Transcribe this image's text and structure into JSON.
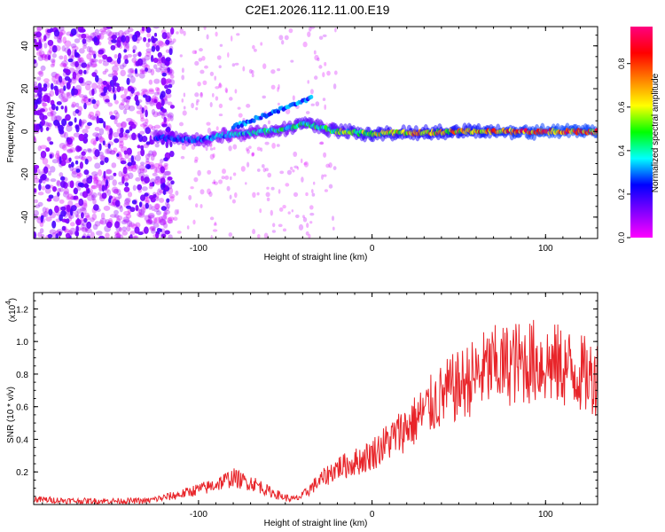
{
  "title": "C2E1.2026.112.11.00.E19",
  "chart_data": [
    {
      "id": "spectrogram",
      "type": "heatmap",
      "xlabel": "Height of straight line (km)",
      "ylabel": "Frequency (Hz)",
      "xlim": [
        -195,
        130
      ],
      "ylim": [
        -50,
        49
      ],
      "xticks": [
        -100,
        0,
        100
      ],
      "xtick_labels": [
        "-100",
        "0",
        "100"
      ],
      "yticks": [
        -40,
        -20,
        0,
        20,
        40
      ],
      "ytick_labels": [
        "-40",
        "-20",
        "0",
        "20",
        "40"
      ],
      "colorbar": {
        "label": "Normalized spectral amplitude",
        "range": [
          0,
          0.97
        ],
        "ticks": [
          0.0,
          0.2,
          0.4,
          0.6,
          0.8
        ],
        "tick_labels": [
          "0.0",
          "0.2",
          "0.4",
          "0.6",
          "0.8"
        ],
        "colormap": [
          "#ff00ff",
          "#8000ff",
          "#0000ff",
          "#00ffff",
          "#00ff00",
          "#ffff00",
          "#ff8000",
          "#ff0000",
          "#ff0080"
        ]
      },
      "features": [
        {
          "name": "noise",
          "x_range": [
            -195,
            -115
          ],
          "freq_range": [
            -50,
            49
          ],
          "amplitude": 0.15
        },
        {
          "name": "central-track",
          "x": [
            -120,
            -100,
            -80,
            -60,
            -45,
            -40,
            -30,
            -20,
            0,
            50,
            100,
            130
          ],
          "freq": [
            -3,
            -4,
            -1,
            0,
            2,
            4,
            2,
            0,
            -1,
            0,
            0,
            0
          ],
          "amplitude": [
            0.3,
            0.35,
            0.4,
            0.45,
            0.5,
            0.55,
            0.5,
            0.6,
            0.7,
            0.8,
            0.9,
            0.9
          ]
        },
        {
          "name": "upper-arc",
          "x": [
            -80,
            -70,
            -60,
            -50,
            -40,
            -35
          ],
          "freq": [
            2,
            5,
            8,
            11,
            14,
            16
          ],
          "amplitude": 0.3
        }
      ]
    },
    {
      "id": "snr",
      "type": "line",
      "xlabel": "Height of straight line (km)",
      "ylabel": "SNR (10 * v/v)",
      "scale_label": "(x10",
      "scale_exp": "4",
      "scale_close": ")",
      "xlim": [
        -195,
        130
      ],
      "ylim": [
        0,
        1.3
      ],
      "xticks": [
        -100,
        0,
        100
      ],
      "xtick_labels": [
        "-100",
        "0",
        "100"
      ],
      "yticks": [
        0.2,
        0.4,
        0.6,
        0.8,
        1.0,
        1.2
      ],
      "ytick_labels": [
        "0.2",
        "0.4",
        "0.6",
        "0.8",
        "1.0",
        "1.2"
      ],
      "series": [
        {
          "name": "SNR",
          "color": "#e8252a",
          "x": [
            -195,
            -170,
            -150,
            -130,
            -120,
            -110,
            -100,
            -95,
            -90,
            -85,
            -80,
            -75,
            -70,
            -65,
            -60,
            -55,
            -50,
            -45,
            -40,
            -35,
            -30,
            -25,
            -20,
            -15,
            -10,
            -5,
            0,
            5,
            10,
            15,
            20,
            25,
            30,
            35,
            40,
            45,
            50,
            55,
            60,
            65,
            70,
            75,
            80,
            85,
            90,
            95,
            100,
            105,
            110,
            115,
            120,
            125,
            130
          ],
          "y": [
            0.03,
            0.02,
            0.02,
            0.02,
            0.04,
            0.06,
            0.09,
            0.1,
            0.12,
            0.14,
            0.16,
            0.14,
            0.13,
            0.11,
            0.08,
            0.06,
            0.04,
            0.03,
            0.05,
            0.1,
            0.14,
            0.18,
            0.22,
            0.23,
            0.25,
            0.27,
            0.3,
            0.34,
            0.38,
            0.42,
            0.46,
            0.5,
            0.55,
            0.6,
            0.64,
            0.68,
            0.7,
            0.74,
            0.76,
            0.8,
            0.82,
            0.82,
            0.84,
            0.84,
            0.85,
            0.85,
            0.84,
            0.83,
            0.82,
            0.8,
            0.78,
            0.76,
            0.76
          ]
        }
      ]
    }
  ]
}
